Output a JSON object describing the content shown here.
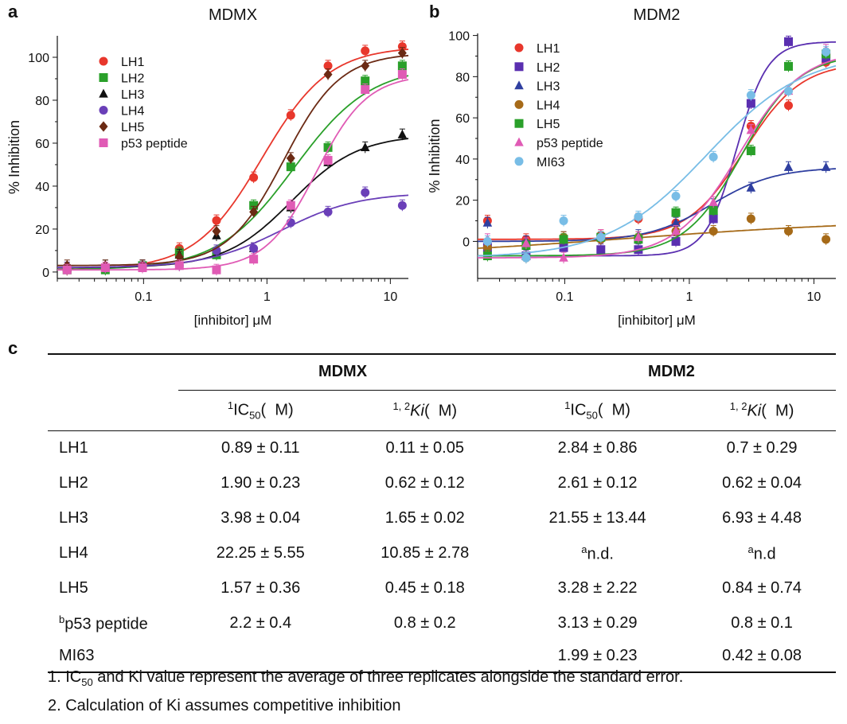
{
  "panel_labels": [
    "a",
    "b",
    "c"
  ],
  "chart_data": [
    {
      "type": "scatter",
      "title": "MDMX",
      "xlabel": "[inhibitor] μM",
      "ylabel": "% Inhibition",
      "xscale": "log",
      "xlim": [
        0.02,
        14
      ],
      "ylim": [
        -3,
        110
      ],
      "xticks": [
        0.1,
        1,
        10
      ],
      "xtick_labels": [
        "0.1",
        "1",
        "10"
      ],
      "yticks": [
        0,
        20,
        40,
        60,
        80,
        100
      ],
      "ytick_labels": [
        "0",
        "20",
        "40",
        "60",
        "80",
        "100"
      ],
      "legend_position": "upper-left",
      "x": [
        0.024,
        0.049,
        0.098,
        0.195,
        0.39,
        0.78,
        1.56,
        3.125,
        6.25,
        12.5
      ],
      "series": [
        {
          "name": "LH1",
          "marker": "circle",
          "color": "#e8372c",
          "values": [
            1,
            2,
            3,
            11,
            24,
            44,
            73,
            96,
            103,
            105
          ]
        },
        {
          "name": "LH2",
          "marker": "square",
          "color": "#2aa02a",
          "values": [
            1,
            1,
            3,
            9,
            8,
            31,
            49,
            58,
            89,
            96
          ]
        },
        {
          "name": "LH3",
          "marker": "triangle",
          "color": "#111111",
          "values": [
            2,
            3,
            3,
            8,
            17,
            11,
            30,
            51,
            58,
            64
          ]
        },
        {
          "name": "LH4",
          "marker": "circle",
          "color": "#6a3fb8",
          "values": [
            2,
            2,
            3,
            3,
            10,
            11,
            23,
            28,
            37,
            31
          ]
        },
        {
          "name": "LH5",
          "marker": "diamond",
          "color": "#6b2a14",
          "values": [
            3,
            3,
            3,
            7,
            19,
            28,
            53,
            92,
            96,
            102
          ]
        },
        {
          "name": "p53 peptide",
          "marker": "square",
          "color": "#e05bb5",
          "values": [
            1,
            2,
            2,
            3,
            1,
            6,
            31,
            52,
            85,
            92
          ]
        }
      ]
    },
    {
      "type": "scatter",
      "title": "MDM2",
      "xlabel": "[inhibitor] μM",
      "ylabel": "% Inhibition",
      "xscale": "log",
      "xlim": [
        0.02,
        15
      ],
      "ylim": [
        -18,
        101
      ],
      "xticks": [
        0.1,
        1,
        10
      ],
      "xtick_labels": [
        "0.1",
        "1",
        "10"
      ],
      "yticks": [
        0,
        20,
        40,
        60,
        80,
        100
      ],
      "ytick_labels": [
        "0",
        "20",
        "40",
        "60",
        "80",
        "100"
      ],
      "legend_position": "upper-left",
      "x": [
        0.024,
        0.049,
        0.098,
        0.195,
        0.39,
        0.78,
        1.56,
        3.125,
        6.25,
        12.5
      ],
      "series": [
        {
          "name": "LH1",
          "marker": "circle",
          "color": "#e8372c",
          "values": [
            10,
            1,
            2,
            3,
            11,
            9,
            16,
            56,
            66,
            87
          ]
        },
        {
          "name": "LH2",
          "marker": "square",
          "color": "#5a2fb0",
          "values": [
            -3,
            -7,
            -3,
            -4,
            -4,
            0,
            11,
            67,
            97,
            89
          ]
        },
        {
          "name": "LH3",
          "marker": "triangle",
          "color": "#2f3fa0",
          "values": [
            9,
            0,
            2,
            2,
            3,
            9,
            18,
            26,
            36,
            36
          ]
        },
        {
          "name": "LH4",
          "marker": "circle",
          "color": "#a66a18",
          "values": [
            -3,
            -8,
            2,
            1,
            2,
            5,
            5,
            11,
            5,
            1
          ]
        },
        {
          "name": "LH5",
          "marker": "square",
          "color": "#2aa02a",
          "values": [
            -7,
            -2,
            1,
            2,
            1,
            14,
            15,
            44,
            85,
            91
          ]
        },
        {
          "name": "p53 peptide",
          "marker": "triangle",
          "color": "#e05bb5",
          "values": [
            1,
            -1,
            -8,
            3,
            2,
            5,
            19,
            54,
            73,
            93
          ]
        },
        {
          "name": "MI63",
          "marker": "circle",
          "color": "#78bde6",
          "values": [
            0,
            -8,
            10,
            2,
            12,
            22,
            41,
            71,
            73,
            92
          ]
        }
      ]
    },
    {
      "type": "table",
      "groups": [
        "MDMX",
        "MDM2"
      ],
      "column_headers": [
        "IC50 (μM)",
        "Ki (μM)",
        "IC50 (μM)",
        "Ki (μM)"
      ],
      "rows": [
        {
          "name": "LH1",
          "values": [
            "0.89 ± 0.11",
            "0.11 ± 0.05",
            "2.84 ± 0.86",
            "0.7 ± 0.29"
          ]
        },
        {
          "name": "LH2",
          "values": [
            "1.90 ± 0.23",
            "0.62 ± 0.12",
            "2.61 ± 0.12",
            "0.62 ± 0.04"
          ]
        },
        {
          "name": "LH3",
          "values": [
            "3.98 ± 0.04",
            "1.65 ± 0.02",
            "21.55 ± 13.44",
            "6.93 ± 4.48"
          ]
        },
        {
          "name": "LH4",
          "values": [
            "22.25 ± 5.55",
            "10.85 ± 2.78",
            "n.d.",
            "n.d"
          ]
        },
        {
          "name": "LH5",
          "values": [
            "1.57 ± 0.36",
            "0.45 ± 0.18",
            "3.28 ± 2.22",
            "0.84 ± 0.74"
          ]
        },
        {
          "name": "p53 peptide",
          "values": [
            "2.2 ± 0.4",
            "0.8 ± 0.2",
            "3.13 ± 0.29",
            "0.8 ± 0.1"
          ]
        },
        {
          "name": "MI63",
          "values": [
            "",
            "",
            "1.99 ± 0.23",
            "0.42 ± 0.08"
          ]
        }
      ]
    }
  ],
  "table_header": {
    "ic50_prefix": "IC",
    "ic50_sub": "50",
    "unit": "(  M)",
    "sup_ic50": "1",
    "sup_ki": "1, 2",
    "ki": "Ki",
    "nd_mark": "a",
    "peptide_mark": "b"
  },
  "footnotes": {
    "f1_prefix": "1. IC",
    "f1_sub": "50",
    "f1_rest": " and Ki value represent the average of three replicates alongside the standard error.",
    "f2": "2. Calculation of Ki assumes competitive inhibition"
  }
}
